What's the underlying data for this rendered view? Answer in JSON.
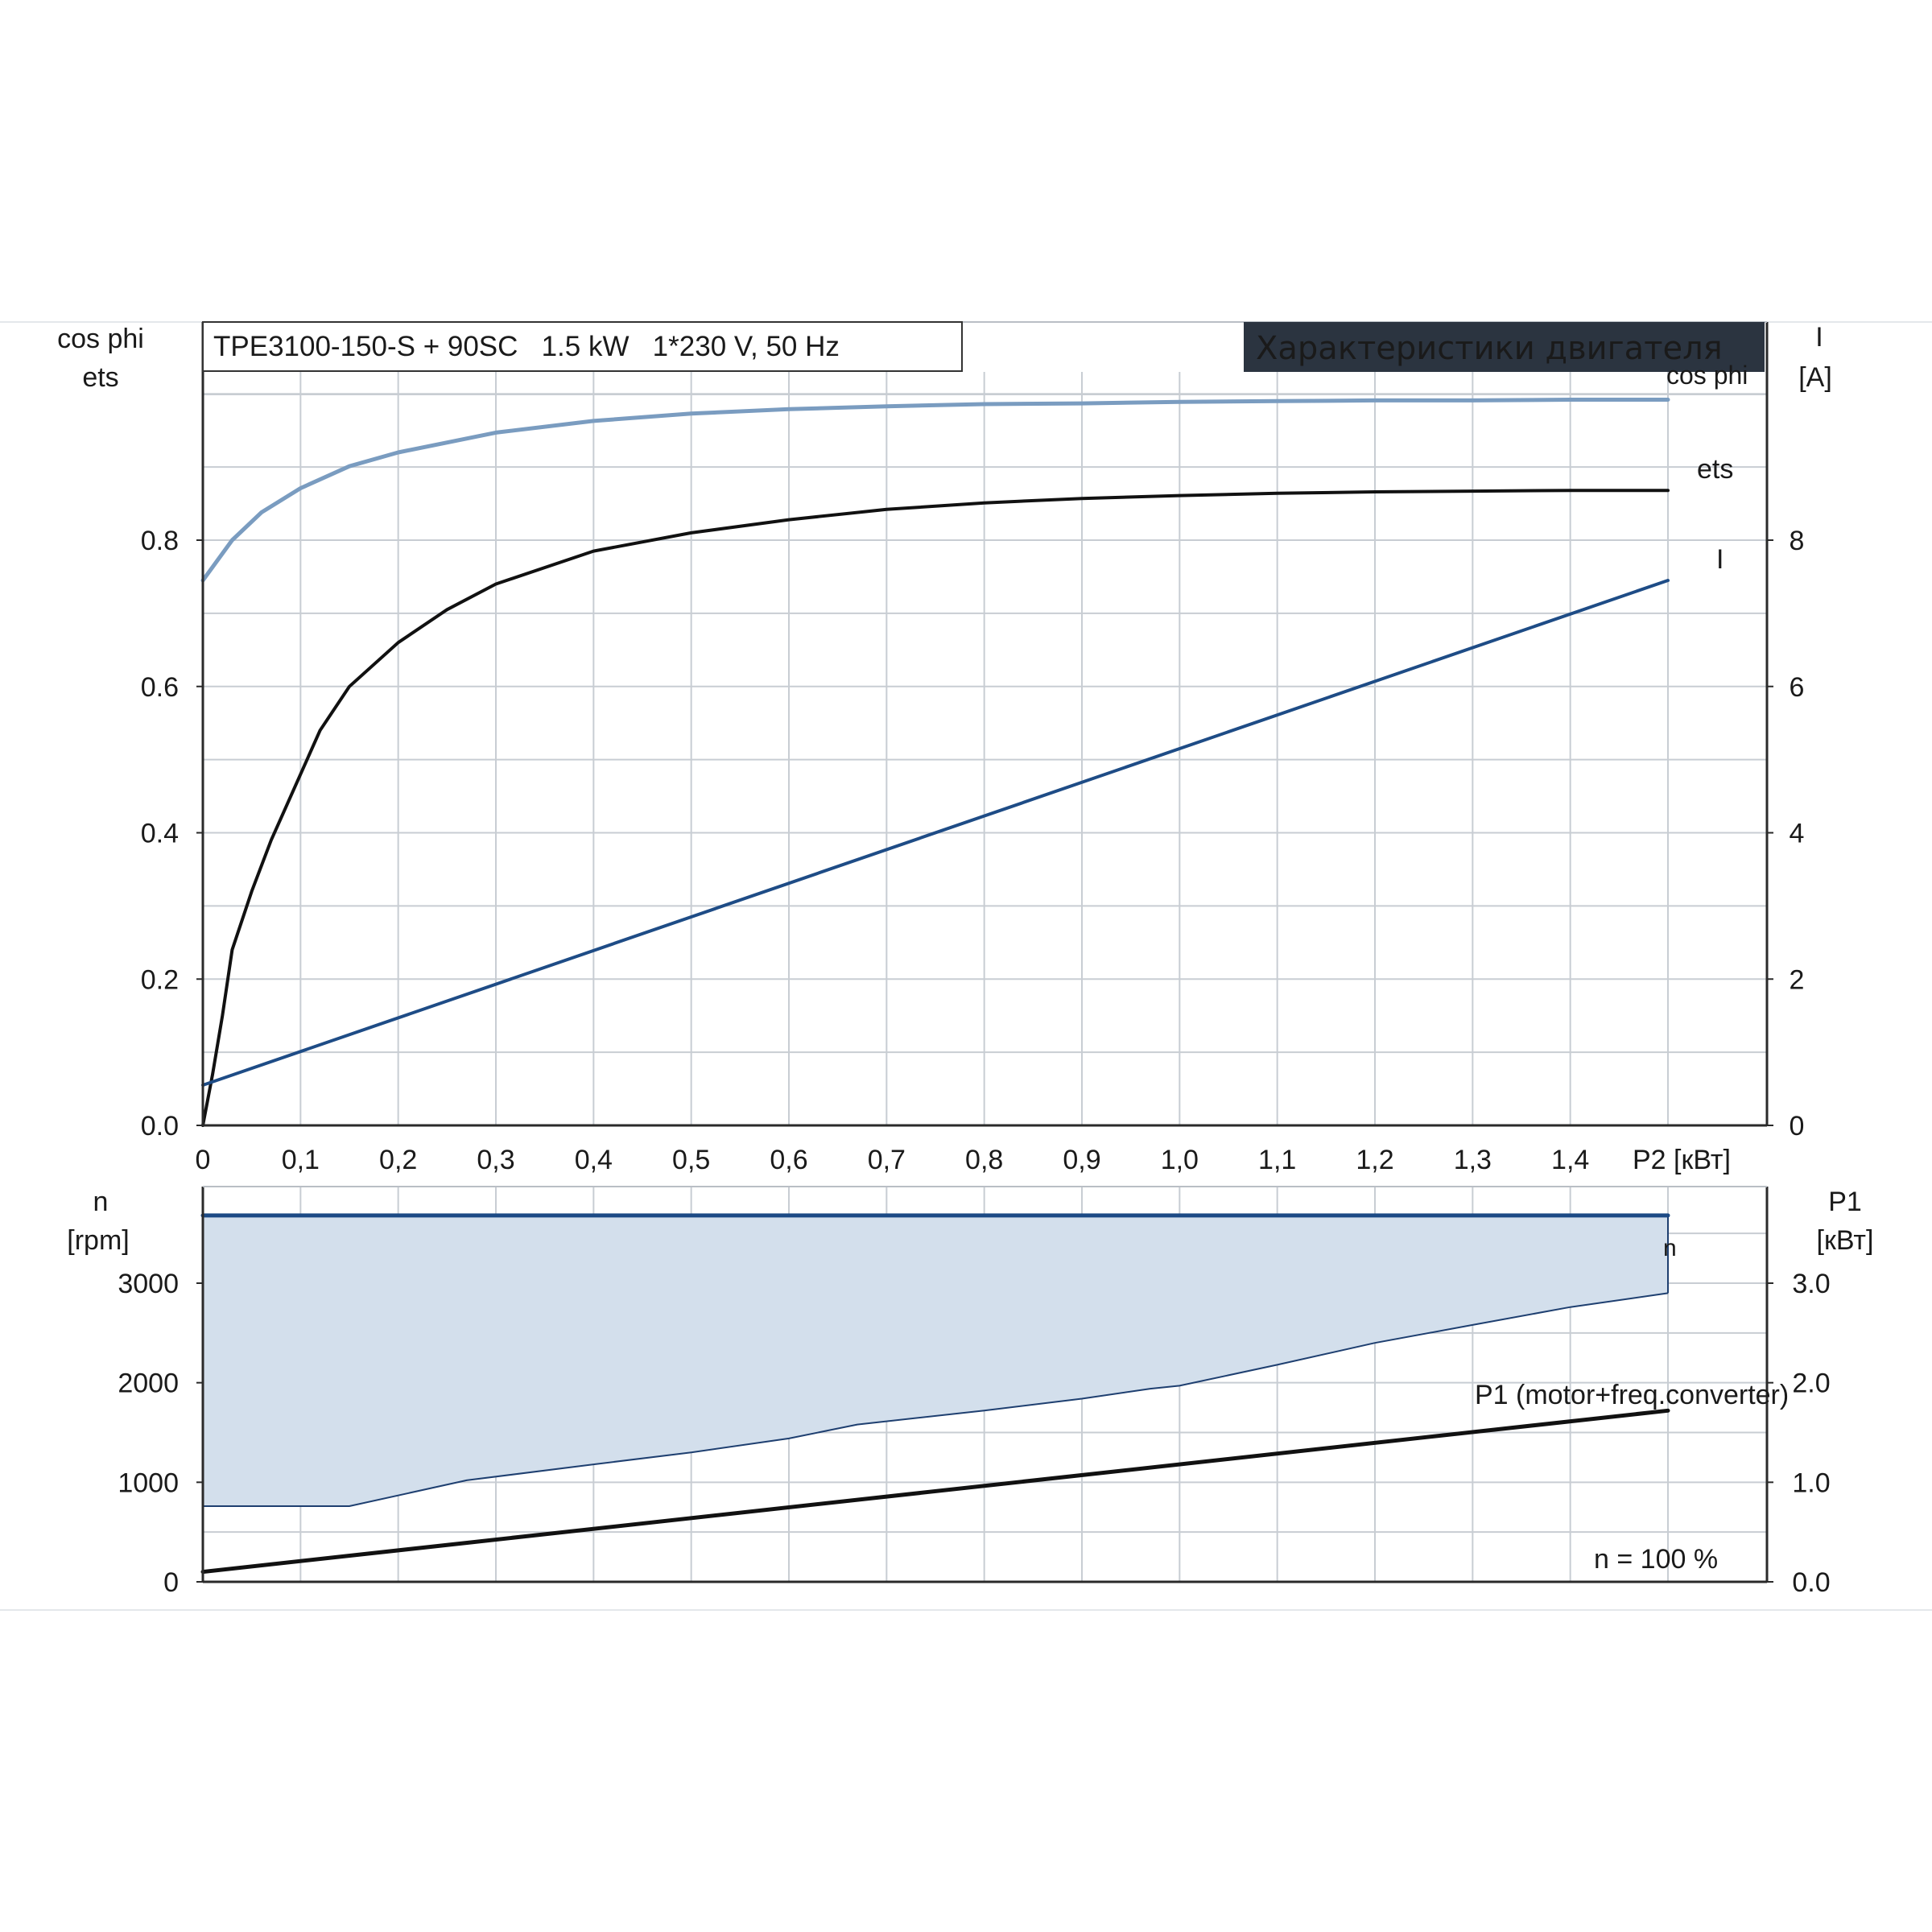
{
  "colors": {
    "grid": "#c8cdd3",
    "frame": "#b9bec5",
    "axis": "#2a2a2a",
    "cosphi": "#7a9cc0",
    "cosphi_label": "#5a86b8",
    "ets": "#111111",
    "current": "#1e4c86",
    "current_label": "#2d6cb0",
    "speed": "#1c4a85",
    "band_fill": "#d3dfec",
    "band_edge": "#1e3f70",
    "p1": "#111111",
    "badge_bg": "#2b3440",
    "badge_text": "#ffffff"
  },
  "header": {
    "model_box": "TPE3100-150-S + 90SC   1.5 kW   1*230 V, 50 Hz",
    "badge": "Характеристики двигателя"
  },
  "chart_data": [
    {
      "type": "line",
      "id": "motor-characteristics",
      "title": "Характеристики двигателя",
      "xlabel": "P2 [кВт]",
      "x_ticks": [
        "0",
        "0,1",
        "0,2",
        "0,3",
        "0,4",
        "0,5",
        "0,6",
        "0,7",
        "0,8",
        "0,9",
        "1,0",
        "1,1",
        "1,2",
        "1,3",
        "1,4"
      ],
      "x_tick_values": [
        0,
        0.1,
        0.2,
        0.3,
        0.4,
        0.5,
        0.6,
        0.7,
        0.8,
        0.9,
        1.0,
        1.1,
        1.2,
        1.3,
        1.4
      ],
      "xlim": [
        0,
        1.6
      ],
      "y_left_label": [
        "cos phi",
        "ets"
      ],
      "y_left_ticks": [
        "0.0",
        "0.2",
        "0.4",
        "0.6",
        "0.8"
      ],
      "y_left_tick_values": [
        0,
        0.2,
        0.4,
        0.6,
        0.8
      ],
      "y_left_lim": [
        0,
        1.0
      ],
      "y_right_label": [
        "I",
        "[A]"
      ],
      "y_right_ticks": [
        "0",
        "2",
        "4",
        "6",
        "8"
      ],
      "y_right_tick_values": [
        0,
        2,
        4,
        6,
        8
      ],
      "y_right_lim": [
        0,
        10
      ],
      "grid": true,
      "series": [
        {
          "name": "cos phi",
          "axis": "left",
          "x": [
            0,
            0.03,
            0.06,
            0.1,
            0.15,
            0.2,
            0.3,
            0.4,
            0.5,
            0.6,
            0.7,
            0.8,
            0.9,
            1.0,
            1.1,
            1.2,
            1.3,
            1.4,
            1.5
          ],
          "y": [
            0.745,
            0.8,
            0.838,
            0.871,
            0.901,
            0.92,
            0.947,
            0.963,
            0.973,
            0.979,
            0.983,
            0.986,
            0.987,
            0.989,
            0.99,
            0.991,
            0.991,
            0.992,
            0.992
          ]
        },
        {
          "name": "ets",
          "axis": "left",
          "x": [
            0,
            0.01,
            0.02,
            0.03,
            0.05,
            0.07,
            0.09,
            0.12,
            0.15,
            0.2,
            0.25,
            0.3,
            0.4,
            0.5,
            0.6,
            0.7,
            0.8,
            0.9,
            1.0,
            1.1,
            1.2,
            1.3,
            1.4,
            1.5
          ],
          "y": [
            0.0,
            0.07,
            0.15,
            0.24,
            0.32,
            0.39,
            0.45,
            0.54,
            0.6,
            0.66,
            0.705,
            0.74,
            0.785,
            0.81,
            0.828,
            0.842,
            0.851,
            0.857,
            0.861,
            0.864,
            0.866,
            0.867,
            0.868,
            0.868
          ]
        },
        {
          "name": "I",
          "axis": "right",
          "x": [
            0,
            1.5
          ],
          "y": [
            0.55,
            7.45
          ]
        }
      ]
    },
    {
      "type": "area",
      "id": "speed-power",
      "xlim": [
        0,
        1.6
      ],
      "y_left_label": [
        "n",
        "[rpm]"
      ],
      "y_left_ticks": [
        "0",
        "1000",
        "2000",
        "3000"
      ],
      "y_left_tick_values": [
        0,
        1000,
        2000,
        3000
      ],
      "y_left_lim": [
        0,
        4000
      ],
      "y_right_label": [
        "P1",
        "[кВт]"
      ],
      "y_right_ticks": [
        "0.0",
        "1.0",
        "2.0",
        "3.0"
      ],
      "y_right_tick_values": [
        0,
        1,
        2,
        3
      ],
      "y_right_lim": [
        0,
        4
      ],
      "grid": true,
      "annotation": "n = 100 %",
      "band": {
        "x": [
          0,
          0.15,
          0.27,
          0.4,
          0.5,
          0.6,
          0.67,
          0.8,
          0.9,
          0.97,
          1.0,
          1.1,
          1.2,
          1.3,
          1.4,
          1.5
        ],
        "y_lower": [
          760,
          760,
          1020,
          1180,
          1300,
          1440,
          1580,
          1720,
          1840,
          1940,
          1970,
          2180,
          2400,
          2580,
          2760,
          2900
        ],
        "y_upper": 3680
      },
      "series": [
        {
          "name": "n",
          "axis": "left",
          "x": [
            0,
            1.5
          ],
          "y": [
            3680,
            3680
          ]
        },
        {
          "name": "P1 (motor+freq.converter)",
          "axis": "right",
          "x": [
            0,
            1.5
          ],
          "y": [
            0.1,
            1.72
          ]
        }
      ]
    }
  ]
}
